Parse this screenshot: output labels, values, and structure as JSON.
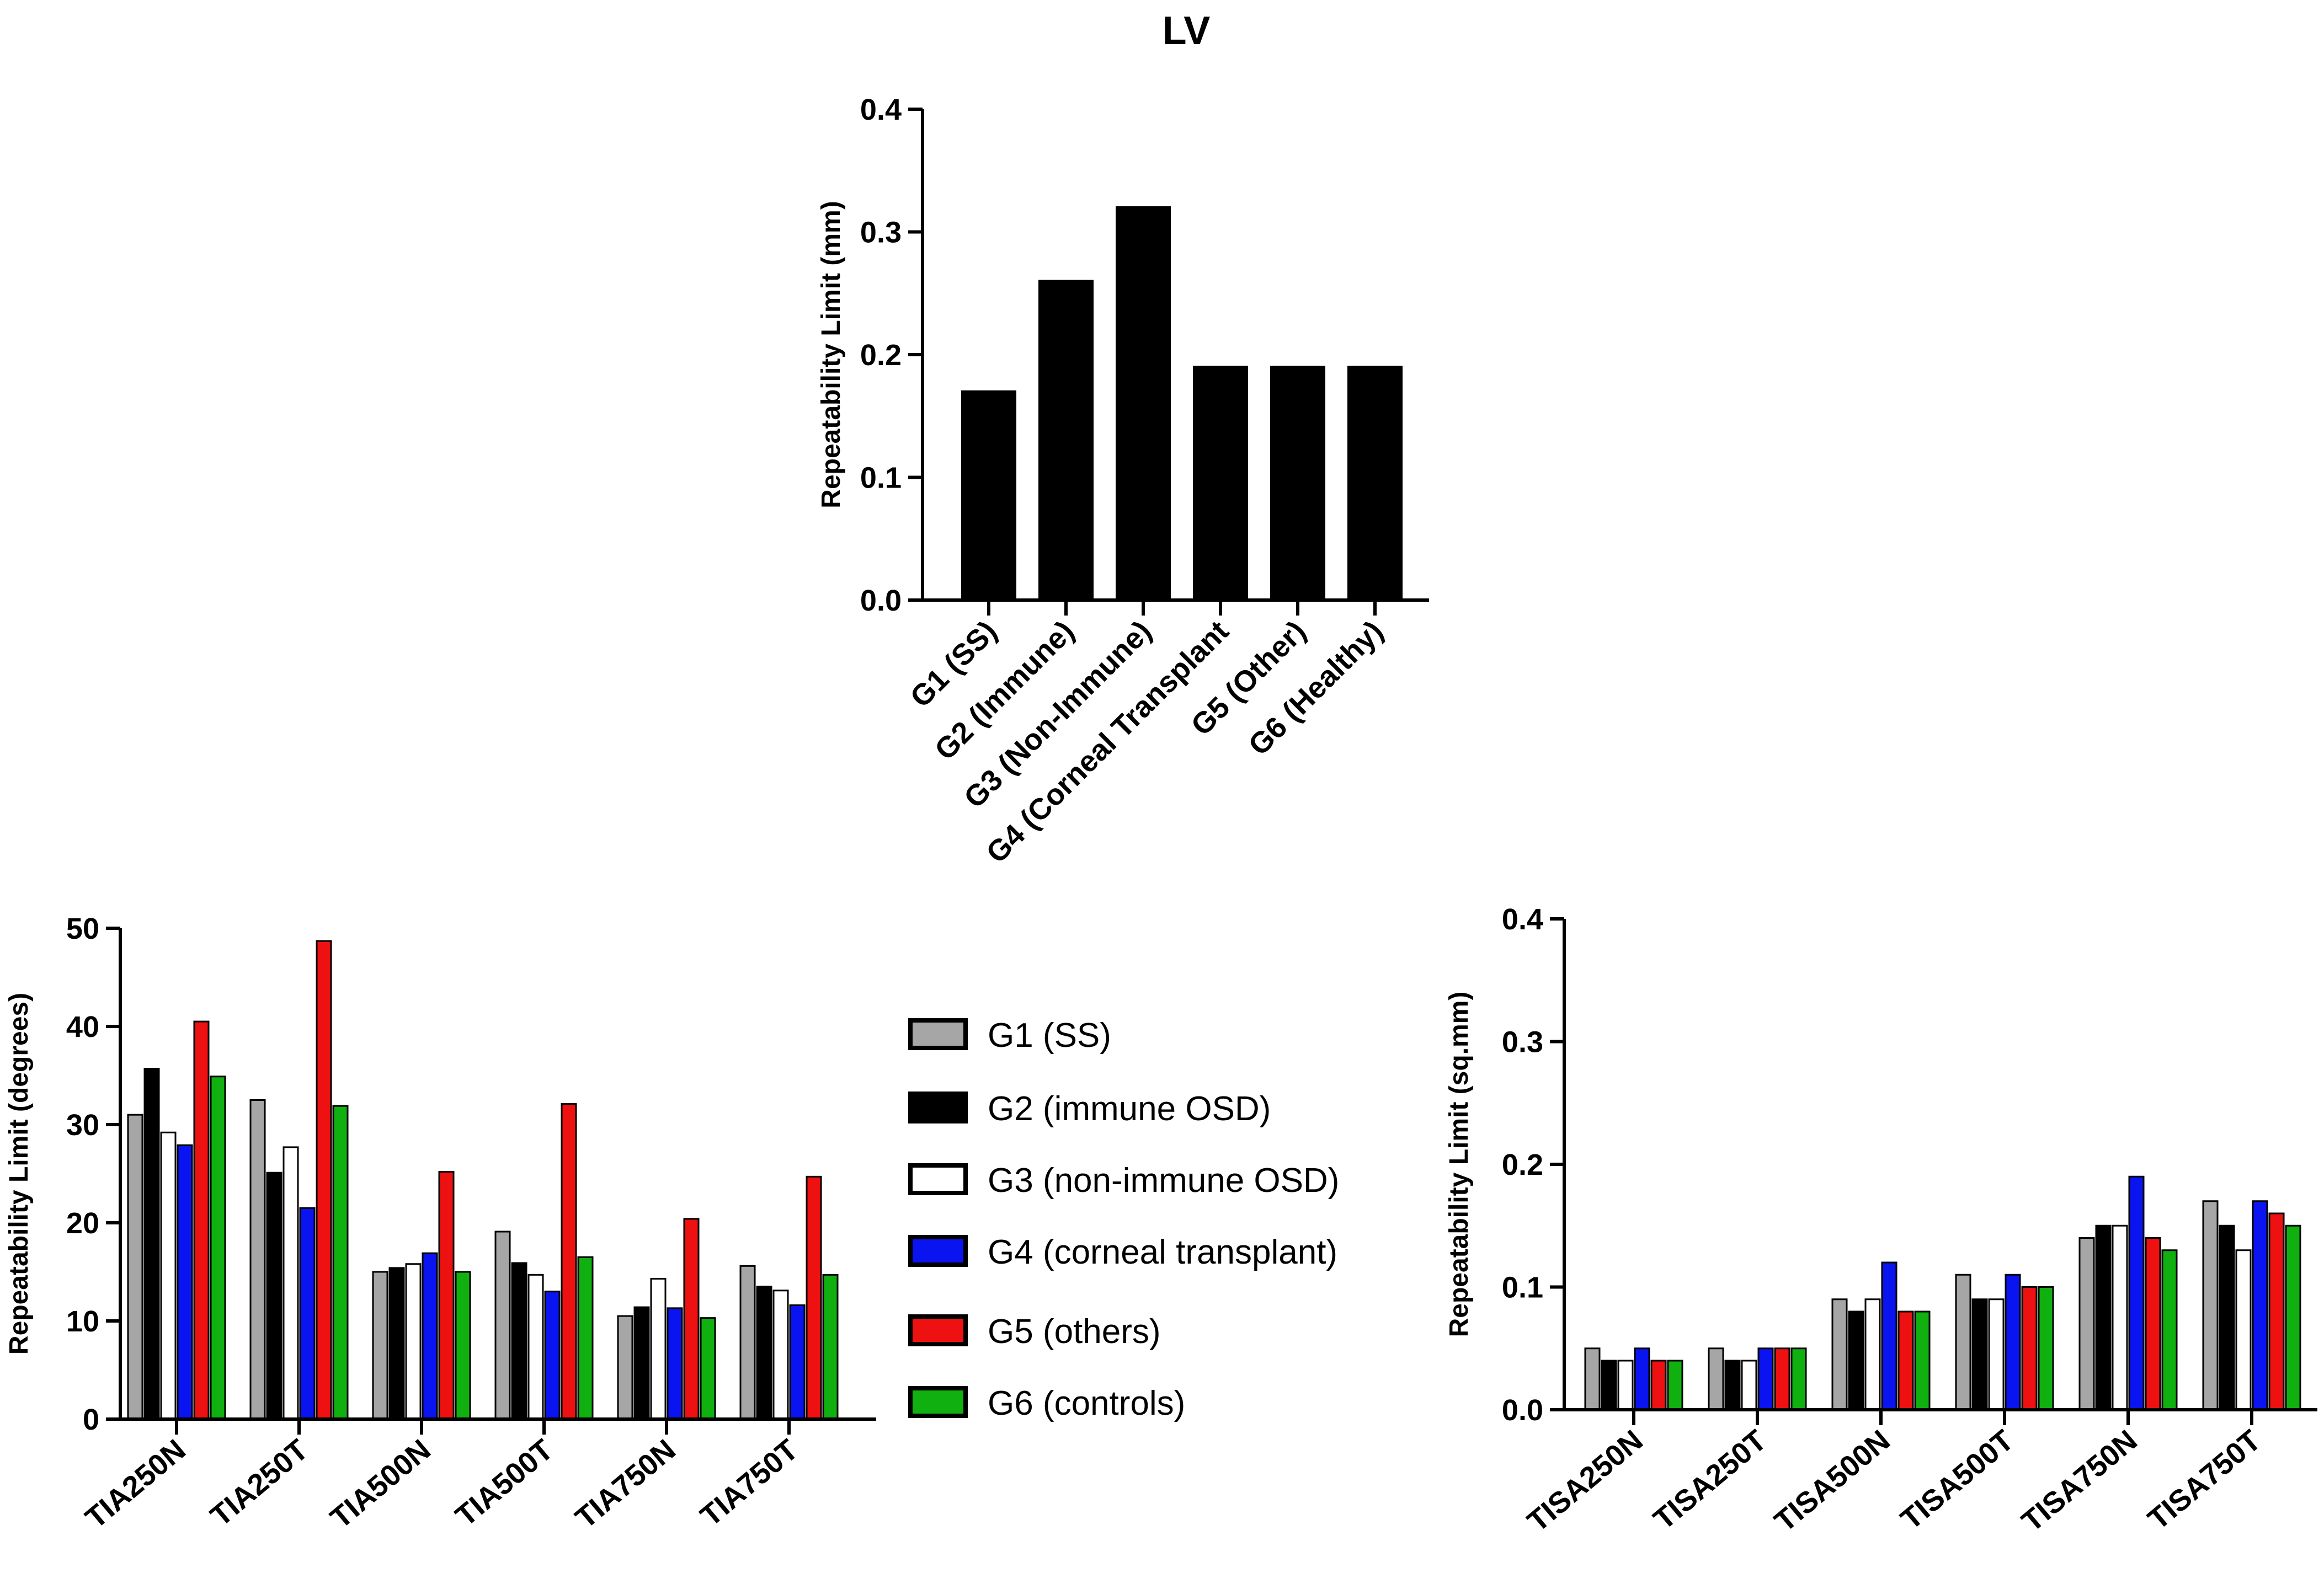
{
  "colors": {
    "G1": "#a6a6a6",
    "G2": "#000000",
    "G3": "#ffffff",
    "G4": "#0a14f0",
    "G5": "#ee1111",
    "G6": "#11b011"
  },
  "legend": {
    "items": [
      {
        "key": "G1",
        "label": "G1 (SS)"
      },
      {
        "key": "G2",
        "label": "G2 (immune OSD)"
      },
      {
        "key": "G3",
        "label": "G3 (non-immune OSD)"
      },
      {
        "key": "G4",
        "label": "G4 (corneal transplant)"
      },
      {
        "key": "G5",
        "label": "G5 (others)"
      },
      {
        "key": "G6",
        "label": "G6 (controls)"
      }
    ]
  },
  "chart_data": [
    {
      "id": "lv",
      "type": "bar",
      "title": "LV",
      "xlabel": "",
      "ylabel": "Repeatability Limit (mm)",
      "ylim": [
        0,
        0.4
      ],
      "yticks": [
        "0.0",
        "0.1",
        "0.2",
        "0.3",
        "0.4"
      ],
      "categories": [
        "G1 (SS)",
        "G2 (Immune)",
        "G3 (Non-Immune)",
        "G4 (Corneal Transplant",
        "G5 (Other)",
        "G6 (Healthy)"
      ],
      "values": [
        0.17,
        0.26,
        0.32,
        0.19,
        0.19,
        0.19
      ]
    },
    {
      "id": "tia",
      "type": "bar",
      "title": "",
      "xlabel": "",
      "ylabel": "Repeatability Limit (degrees)",
      "ylim": [
        0,
        50
      ],
      "yticks": [
        "0",
        "10",
        "20",
        "30",
        "40",
        "50"
      ],
      "categories": [
        "TIA250N",
        "TIA250T",
        "TIA500N",
        "TIA500T",
        "TIA750N",
        "TIA750T"
      ],
      "series": [
        {
          "name": "G1 (SS)",
          "key": "G1",
          "values": [
            31.0,
            32.5,
            15.0,
            19.1,
            10.5,
            15.6
          ]
        },
        {
          "name": "G2 (immune OSD)",
          "key": "G2",
          "values": [
            35.7,
            25.1,
            15.4,
            15.9,
            11.4,
            13.5
          ]
        },
        {
          "name": "G3 (non-immune OSD)",
          "key": "G3",
          "values": [
            29.2,
            27.7,
            15.8,
            14.7,
            14.3,
            13.1
          ]
        },
        {
          "name": "G4 (corneal transplant)",
          "key": "G4",
          "values": [
            27.9,
            21.5,
            16.9,
            13.0,
            11.3,
            11.6
          ]
        },
        {
          "name": "G5 (others)",
          "key": "G5",
          "values": [
            40.5,
            48.7,
            25.2,
            32.1,
            20.4,
            24.7
          ]
        },
        {
          "name": "G6 (controls)",
          "key": "G6",
          "values": [
            34.9,
            31.9,
            15.0,
            16.5,
            10.3,
            14.7
          ]
        }
      ]
    },
    {
      "id": "tisa",
      "type": "bar",
      "title": "",
      "xlabel": "",
      "ylabel": "Repeatability Limit (sq.mm)",
      "ylim": [
        0,
        0.4
      ],
      "yticks": [
        "0.0",
        "0.1",
        "0.2",
        "0.3",
        "0.4"
      ],
      "categories": [
        "TISA250N",
        "TISA250T",
        "TISA500N",
        "TISA500T",
        "TISA750N",
        "TISA750T"
      ],
      "series": [
        {
          "name": "G1 (SS)",
          "key": "G1",
          "values": [
            0.05,
            0.05,
            0.09,
            0.11,
            0.14,
            0.17
          ]
        },
        {
          "name": "G2 (immune OSD)",
          "key": "G2",
          "values": [
            0.04,
            0.04,
            0.08,
            0.09,
            0.15,
            0.15
          ]
        },
        {
          "name": "G3 (non-immune OSD)",
          "key": "G3",
          "values": [
            0.04,
            0.04,
            0.09,
            0.09,
            0.15,
            0.13
          ]
        },
        {
          "name": "G4 (corneal transplant)",
          "key": "G4",
          "values": [
            0.05,
            0.05,
            0.12,
            0.11,
            0.19,
            0.17
          ]
        },
        {
          "name": "G5 (others)",
          "key": "G5",
          "values": [
            0.04,
            0.05,
            0.08,
            0.1,
            0.14,
            0.16
          ]
        },
        {
          "name": "G6 (controls)",
          "key": "G6",
          "values": [
            0.04,
            0.05,
            0.08,
            0.1,
            0.13,
            0.15
          ]
        }
      ]
    }
  ]
}
